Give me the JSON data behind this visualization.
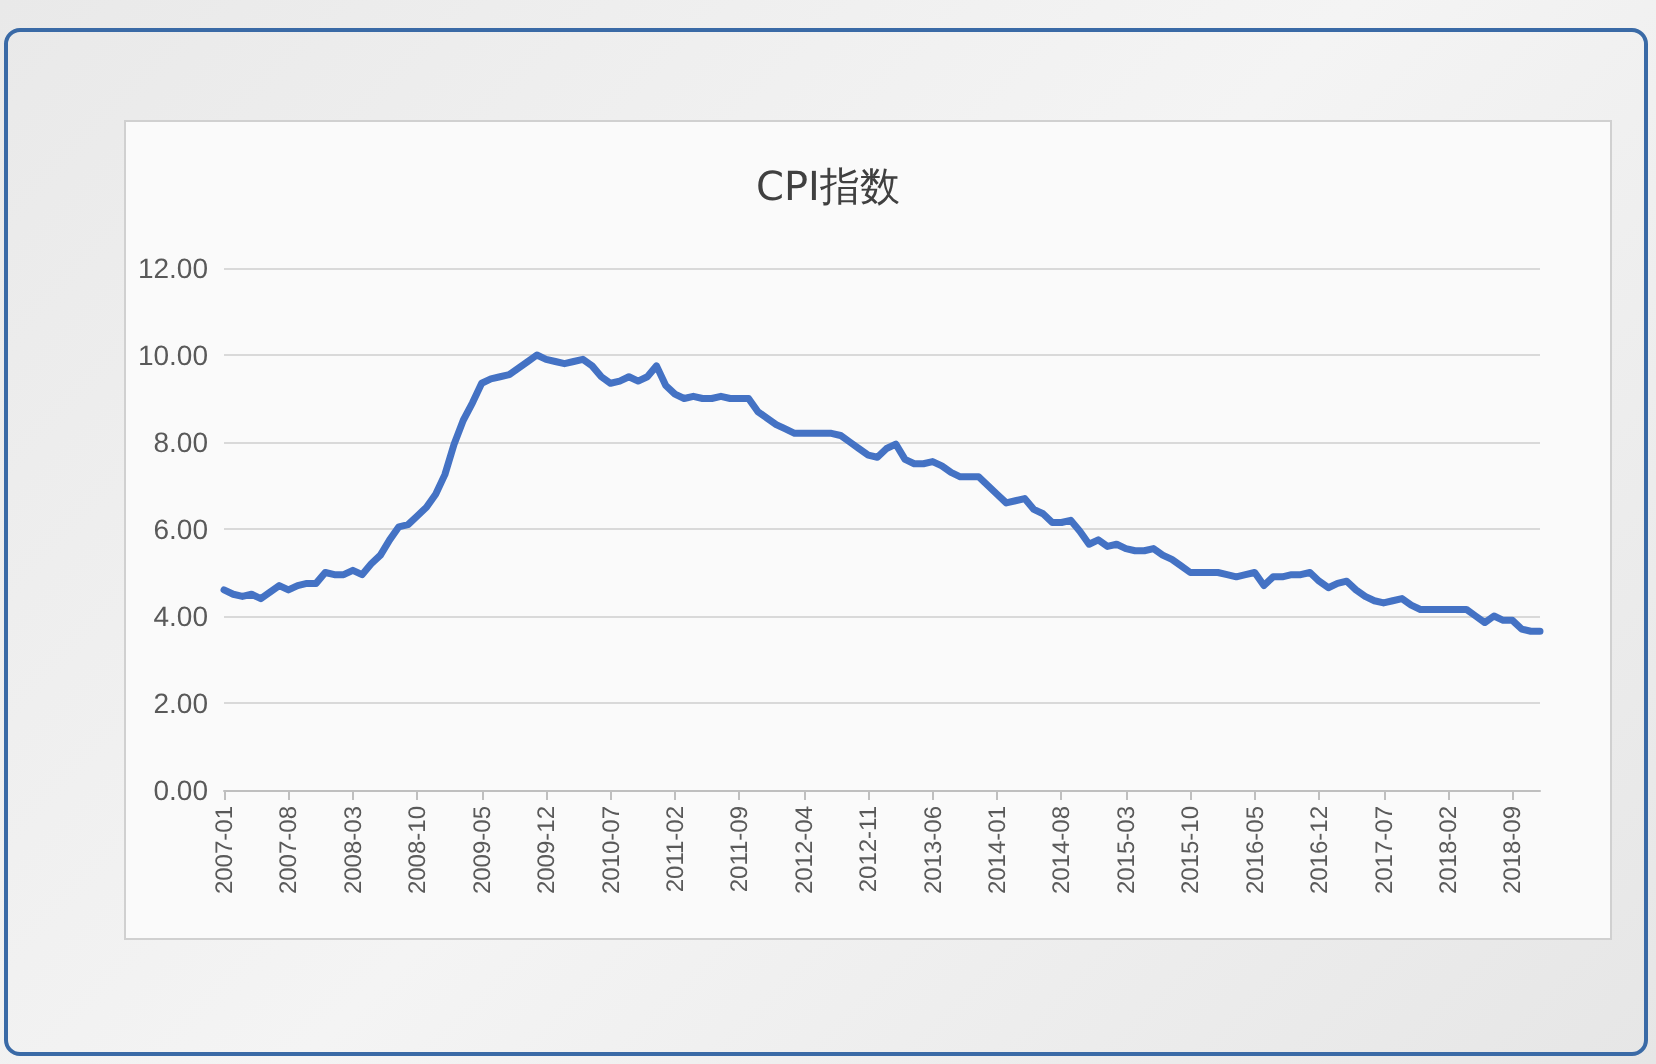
{
  "chart_data": {
    "type": "line",
    "title": "CPI指数",
    "categories": [
      "2007-01",
      null,
      null,
      null,
      null,
      null,
      null,
      "2007-08",
      null,
      null,
      null,
      null,
      null,
      null,
      "2008-03",
      null,
      null,
      null,
      null,
      null,
      null,
      "2008-10",
      null,
      null,
      null,
      null,
      null,
      null,
      "2009-05",
      null,
      null,
      null,
      null,
      null,
      null,
      "2009-12",
      null,
      null,
      null,
      null,
      null,
      null,
      "2010-07",
      null,
      null,
      null,
      null,
      null,
      null,
      "2011-02",
      null,
      null,
      null,
      null,
      null,
      null,
      "2011-09",
      null,
      null,
      null,
      null,
      null,
      null,
      "2012-04",
      null,
      null,
      null,
      null,
      null,
      null,
      "2012-11",
      null,
      null,
      null,
      null,
      null,
      null,
      "2013-06",
      null,
      null,
      null,
      null,
      null,
      null,
      "2014-01",
      null,
      null,
      null,
      null,
      null,
      null,
      "2014-08",
      null,
      null,
      null,
      null,
      null,
      null,
      "2015-03",
      null,
      null,
      null,
      null,
      null,
      null,
      "2015-10",
      null,
      null,
      null,
      null,
      null,
      null,
      "2016-05",
      null,
      null,
      null,
      null,
      null,
      null,
      "2016-12",
      null,
      null,
      null,
      null,
      null,
      null,
      "2017-07",
      null,
      null,
      null,
      null,
      null,
      null,
      "2018-02",
      null,
      null,
      null,
      null,
      null,
      null,
      "2018-09",
      null,
      null,
      null
    ],
    "series": [
      {
        "color": "#4472c4",
        "values": [
          4.6,
          4.5,
          4.45,
          4.5,
          4.4,
          4.55,
          4.7,
          4.6,
          4.7,
          4.75,
          4.75,
          5.0,
          4.95,
          4.95,
          5.05,
          4.95,
          5.2,
          5.4,
          5.75,
          6.05,
          6.1,
          6.3,
          6.5,
          6.8,
          7.25,
          7.95,
          8.5,
          8.9,
          9.35,
          9.45,
          9.5,
          9.55,
          9.7,
          9.85,
          10.0,
          9.9,
          9.85,
          9.8,
          9.85,
          9.9,
          9.75,
          9.5,
          9.35,
          9.4,
          9.5,
          9.4,
          9.5,
          9.75,
          9.3,
          9.1,
          9.0,
          9.05,
          9.0,
          9.0,
          9.05,
          9.0,
          9.0,
          9.0,
          8.7,
          8.55,
          8.4,
          8.3,
          8.2,
          8.2,
          8.2,
          8.2,
          8.2,
          8.15,
          8.0,
          7.85,
          7.7,
          7.65,
          7.85,
          7.95,
          7.6,
          7.5,
          7.5,
          7.55,
          7.45,
          7.3,
          7.2,
          7.2,
          7.2,
          7.0,
          6.8,
          6.6,
          6.65,
          6.7,
          6.45,
          6.35,
          6.15,
          6.15,
          6.2,
          5.95,
          5.65,
          5.75,
          5.6,
          5.65,
          5.55,
          5.5,
          5.5,
          5.55,
          5.4,
          5.3,
          5.15,
          5.0,
          5.0,
          5.0,
          5.0,
          4.95,
          4.9,
          4.95,
          5.0,
          4.7,
          4.9,
          4.9,
          4.95,
          4.95,
          5.0,
          4.8,
          4.65,
          4.75,
          4.8,
          4.6,
          4.45,
          4.35,
          4.3,
          4.35,
          4.4,
          4.25,
          4.15,
          4.15,
          4.15,
          4.15,
          4.15,
          4.15,
          4.0,
          3.85,
          4.0,
          3.9,
          3.9,
          3.7,
          3.65,
          3.65
        ]
      }
    ],
    "ylim": [
      0,
      12
    ],
    "yticks": [
      {
        "value": 0,
        "label": "0.00"
      },
      {
        "value": 2,
        "label": "2.00"
      },
      {
        "value": 4,
        "label": "4.00"
      },
      {
        "value": 6,
        "label": "6.00"
      },
      {
        "value": 8,
        "label": "8.00"
      },
      {
        "value": 10,
        "label": "10.00"
      },
      {
        "value": 12,
        "label": "12.00"
      }
    ],
    "grid": "y",
    "marker": "none",
    "line_style": "solid"
  }
}
